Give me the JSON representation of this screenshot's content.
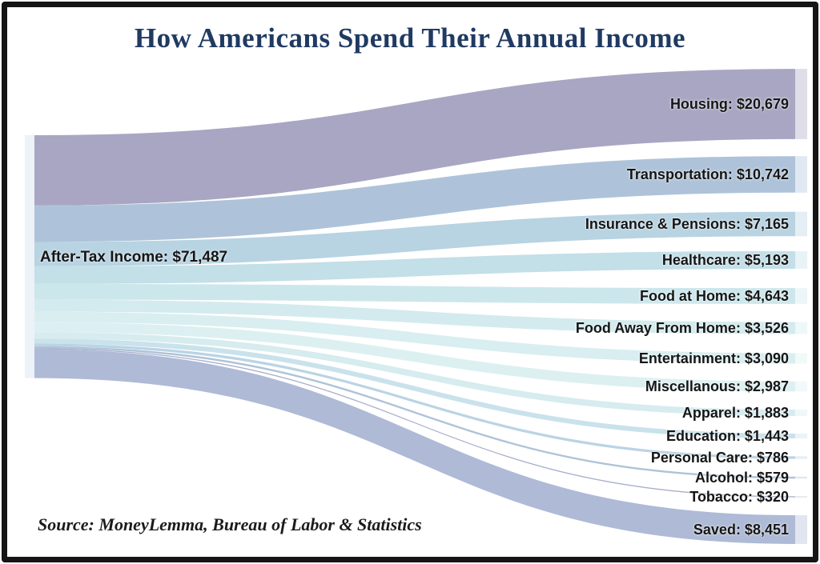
{
  "page": {
    "title": "How Americans Spend Their Annual Income",
    "source_note": "Source: MoneyLemma, Bureau of Labor & Statistics"
  },
  "colors": {
    "title_text": "#203a62",
    "label_text": "#151515",
    "frame_border": "#151515",
    "background": "#ffffff",
    "source_node_bar": "#edf2f8"
  },
  "chart_data": {
    "type": "sankey",
    "title": "How Americans Spend Their Annual Income",
    "total": 71487,
    "source_node": {
      "id": "after_tax_income",
      "name": "After-Tax Income",
      "value": 71487,
      "label": "After-Tax Income: $71,487"
    },
    "flows": [
      {
        "id": "housing",
        "name": "Housing",
        "value": 20679,
        "label": "Housing: $20,679",
        "color": "#a9a6c3"
      },
      {
        "id": "transportation",
        "name": "Transportation",
        "value": 10742,
        "label": "Transportation: $10,742",
        "color": "#aec3d9"
      },
      {
        "id": "insurance_pensions",
        "name": "Insurance & Pensions",
        "value": 7165,
        "label": "Insurance & Pensions: $7,165",
        "color": "#b8d3e2"
      },
      {
        "id": "healthcare",
        "name": "Healthcare",
        "value": 5193,
        "label": "Healthcare: $5,193",
        "color": "#c3dfe8"
      },
      {
        "id": "food_at_home",
        "name": "Food at Home",
        "value": 4643,
        "label": "Food at Home: $4,643",
        "color": "#cce7ec"
      },
      {
        "id": "food_away_from_home",
        "name": "Food Away From Home",
        "value": 3526,
        "label": "Food Away From Home: $3,526",
        "color": "#d3ebee"
      },
      {
        "id": "entertainment",
        "name": "Entertainment",
        "value": 3090,
        "label": "Entertainment: $3,090",
        "color": "#d9eef0"
      },
      {
        "id": "miscellanous",
        "name": "Miscellanous",
        "value": 2987,
        "label": "Miscellanous: $2,987",
        "color": "#ddf0f1"
      },
      {
        "id": "apparel",
        "name": "Apparel",
        "value": 1883,
        "label": "Apparel: $1,883",
        "color": "#d6ecef"
      },
      {
        "id": "education",
        "name": "Education",
        "value": 1443,
        "label": "Education: $1,443",
        "color": "#c9e2ec"
      },
      {
        "id": "personal_care",
        "name": "Personal Care",
        "value": 786,
        "label": "Personal Care: $786",
        "color": "#bad4e4"
      },
      {
        "id": "alcohol",
        "name": "Alcohol",
        "value": 579,
        "label": "Alcohol: $579",
        "color": "#aec3d8"
      },
      {
        "id": "tobacco",
        "name": "Tobacco",
        "value": 320,
        "label": "Tobacco: $320",
        "color": "#a8aecb"
      },
      {
        "id": "saved",
        "name": "Saved",
        "value": 8451,
        "label": "Saved: $8,451",
        "color": "#aebad6"
      }
    ]
  }
}
